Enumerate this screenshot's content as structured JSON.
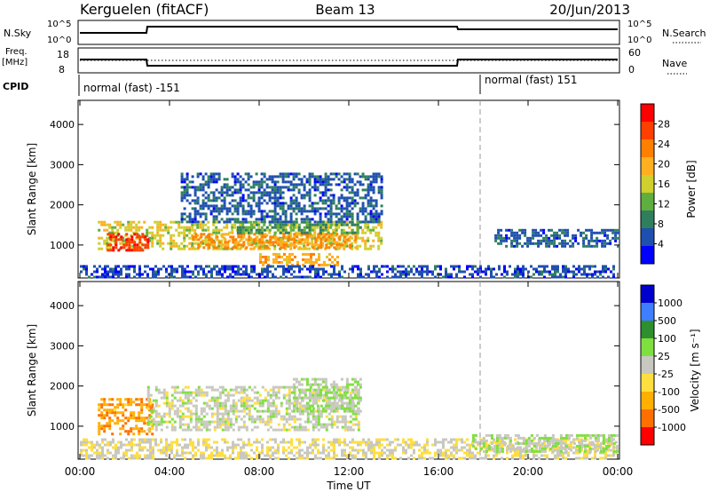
{
  "header": {
    "title": "Kerguelen (fitACF)",
    "beam": "Beam 13",
    "date": "20/Jun/2013"
  },
  "noise_panel": {
    "left_label": "N.Sky",
    "left_ticks": [
      "10^5",
      "10^0"
    ],
    "right_ticks": [
      "10^5",
      "10^0"
    ],
    "right_label": "N.Search"
  },
  "freq_panel": {
    "left_label_1": "Freq.",
    "left_label_2": "[MHz]",
    "left_ticks": [
      "18",
      "8"
    ],
    "right_ticks": [
      "60",
      "0"
    ],
    "right_label": "Nave"
  },
  "cpid": {
    "label": "CPID",
    "mode_1": "normal (fast) -151",
    "mode_2": "normal (fast) 151"
  },
  "x_axis": {
    "ticks": [
      "00:00",
      "04:00",
      "08:00",
      "12:00",
      "16:00",
      "20:00",
      "00:00"
    ],
    "label": "Time UT"
  },
  "colors": {
    "power_scale": [
      "#0000ff",
      "#1f4faf",
      "#2f7f5f",
      "#5faf3f",
      "#cfcf2f",
      "#ffaf1f",
      "#ff7f00",
      "#ff3f00",
      "#ff0000"
    ],
    "velocity_scale": [
      "#0000cc",
      "#3f7fff",
      "#2f8f2f",
      "#7fdf3f",
      "#c8c8c0",
      "#ffdf3f",
      "#ffaf00",
      "#ff6f00",
      "#ff0000"
    ]
  },
  "chart_data": [
    {
      "type": "heatmap",
      "name": "power",
      "ylabel": "Slant Range [km]",
      "ylim": [
        180,
        4600
      ],
      "yticks": [
        1000,
        2000,
        3000,
        4000
      ],
      "xlim_hours": [
        0,
        24
      ],
      "colorbar": {
        "label": "Power [dB]",
        "ticks": [
          "28",
          "24",
          "20",
          "16",
          "12",
          "8",
          "4"
        ],
        "range": [
          0,
          32
        ]
      },
      "regions": [
        {
          "t0": 0.8,
          "t1": 13.5,
          "r0": 900,
          "r1": 1600,
          "level": 16
        },
        {
          "t0": 1.2,
          "t1": 3.0,
          "r0": 900,
          "r1": 1300,
          "level": 28
        },
        {
          "t0": 5.0,
          "t1": 12.3,
          "r0": 950,
          "r1": 1300,
          "level": 22
        },
        {
          "t0": 7.0,
          "t1": 12.5,
          "r0": 1300,
          "r1": 1600,
          "level": 10
        },
        {
          "t0": 8.0,
          "t1": 11.5,
          "r0": 500,
          "r1": 800,
          "level": 20
        },
        {
          "t0": 4.5,
          "t1": 13.5,
          "r0": 1600,
          "r1": 2800,
          "level": 6
        },
        {
          "t0": 0,
          "t1": 24,
          "r0": 200,
          "r1": 500,
          "level": 5
        },
        {
          "t0": 18.5,
          "t1": 24,
          "r0": 1000,
          "r1": 1400,
          "level": 6
        }
      ]
    },
    {
      "type": "heatmap",
      "name": "velocity",
      "ylabel": "Slant Range [km]",
      "ylim": [
        180,
        4600
      ],
      "yticks": [
        1000,
        2000,
        3000,
        4000
      ],
      "xlim_hours": [
        0,
        24
      ],
      "colorbar": {
        "label": "Velocity [m s⁻¹]",
        "ticks": [
          "1000",
          "500",
          "100",
          "25",
          "-25",
          "-100",
          "-500",
          "-1000"
        ],
        "range": [
          -1000,
          1000
        ]
      },
      "regions": [
        {
          "t0": 0.8,
          "t1": 3.2,
          "r0": 800,
          "r1": 1700,
          "level": -500
        },
        {
          "t0": 3.0,
          "t1": 12.5,
          "r0": 900,
          "r1": 2000,
          "level": 0
        },
        {
          "t0": 9.5,
          "t1": 12.5,
          "r0": 1400,
          "r1": 2200,
          "level": 100
        },
        {
          "t0": 0,
          "t1": 24,
          "r0": 200,
          "r1": 700,
          "level": -100
        },
        {
          "t0": 17.5,
          "t1": 24,
          "r0": 400,
          "r1": 800,
          "level": 100
        }
      ]
    }
  ]
}
